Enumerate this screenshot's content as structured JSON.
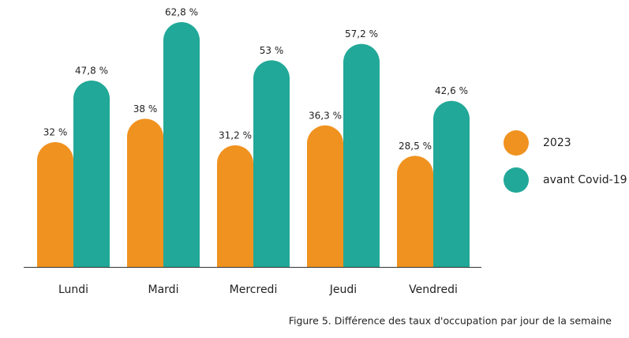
{
  "chart_data": {
    "type": "bar",
    "caption": "Figure 5. Différence des taux d'occupation par jour de la semaine",
    "categories": [
      "Lundi",
      "Mardi",
      "Mercredi",
      "Jeudi",
      "Vendredi"
    ],
    "series": [
      {
        "name": "2023",
        "color": "#f0921f",
        "values": [
          32,
          38,
          31.2,
          36.3,
          28.5
        ],
        "value_labels": [
          "32 %",
          "38 %",
          "31,2 %",
          "36,3 %",
          "28,5 %"
        ]
      },
      {
        "name": "avant Covid-19",
        "color": "#21a898",
        "values": [
          47.8,
          62.8,
          53,
          57.2,
          42.6
        ],
        "value_labels": [
          "47,8 %",
          "62,8 %",
          "53 %",
          "57,2 %",
          "42,6 %"
        ]
      }
    ]
  }
}
